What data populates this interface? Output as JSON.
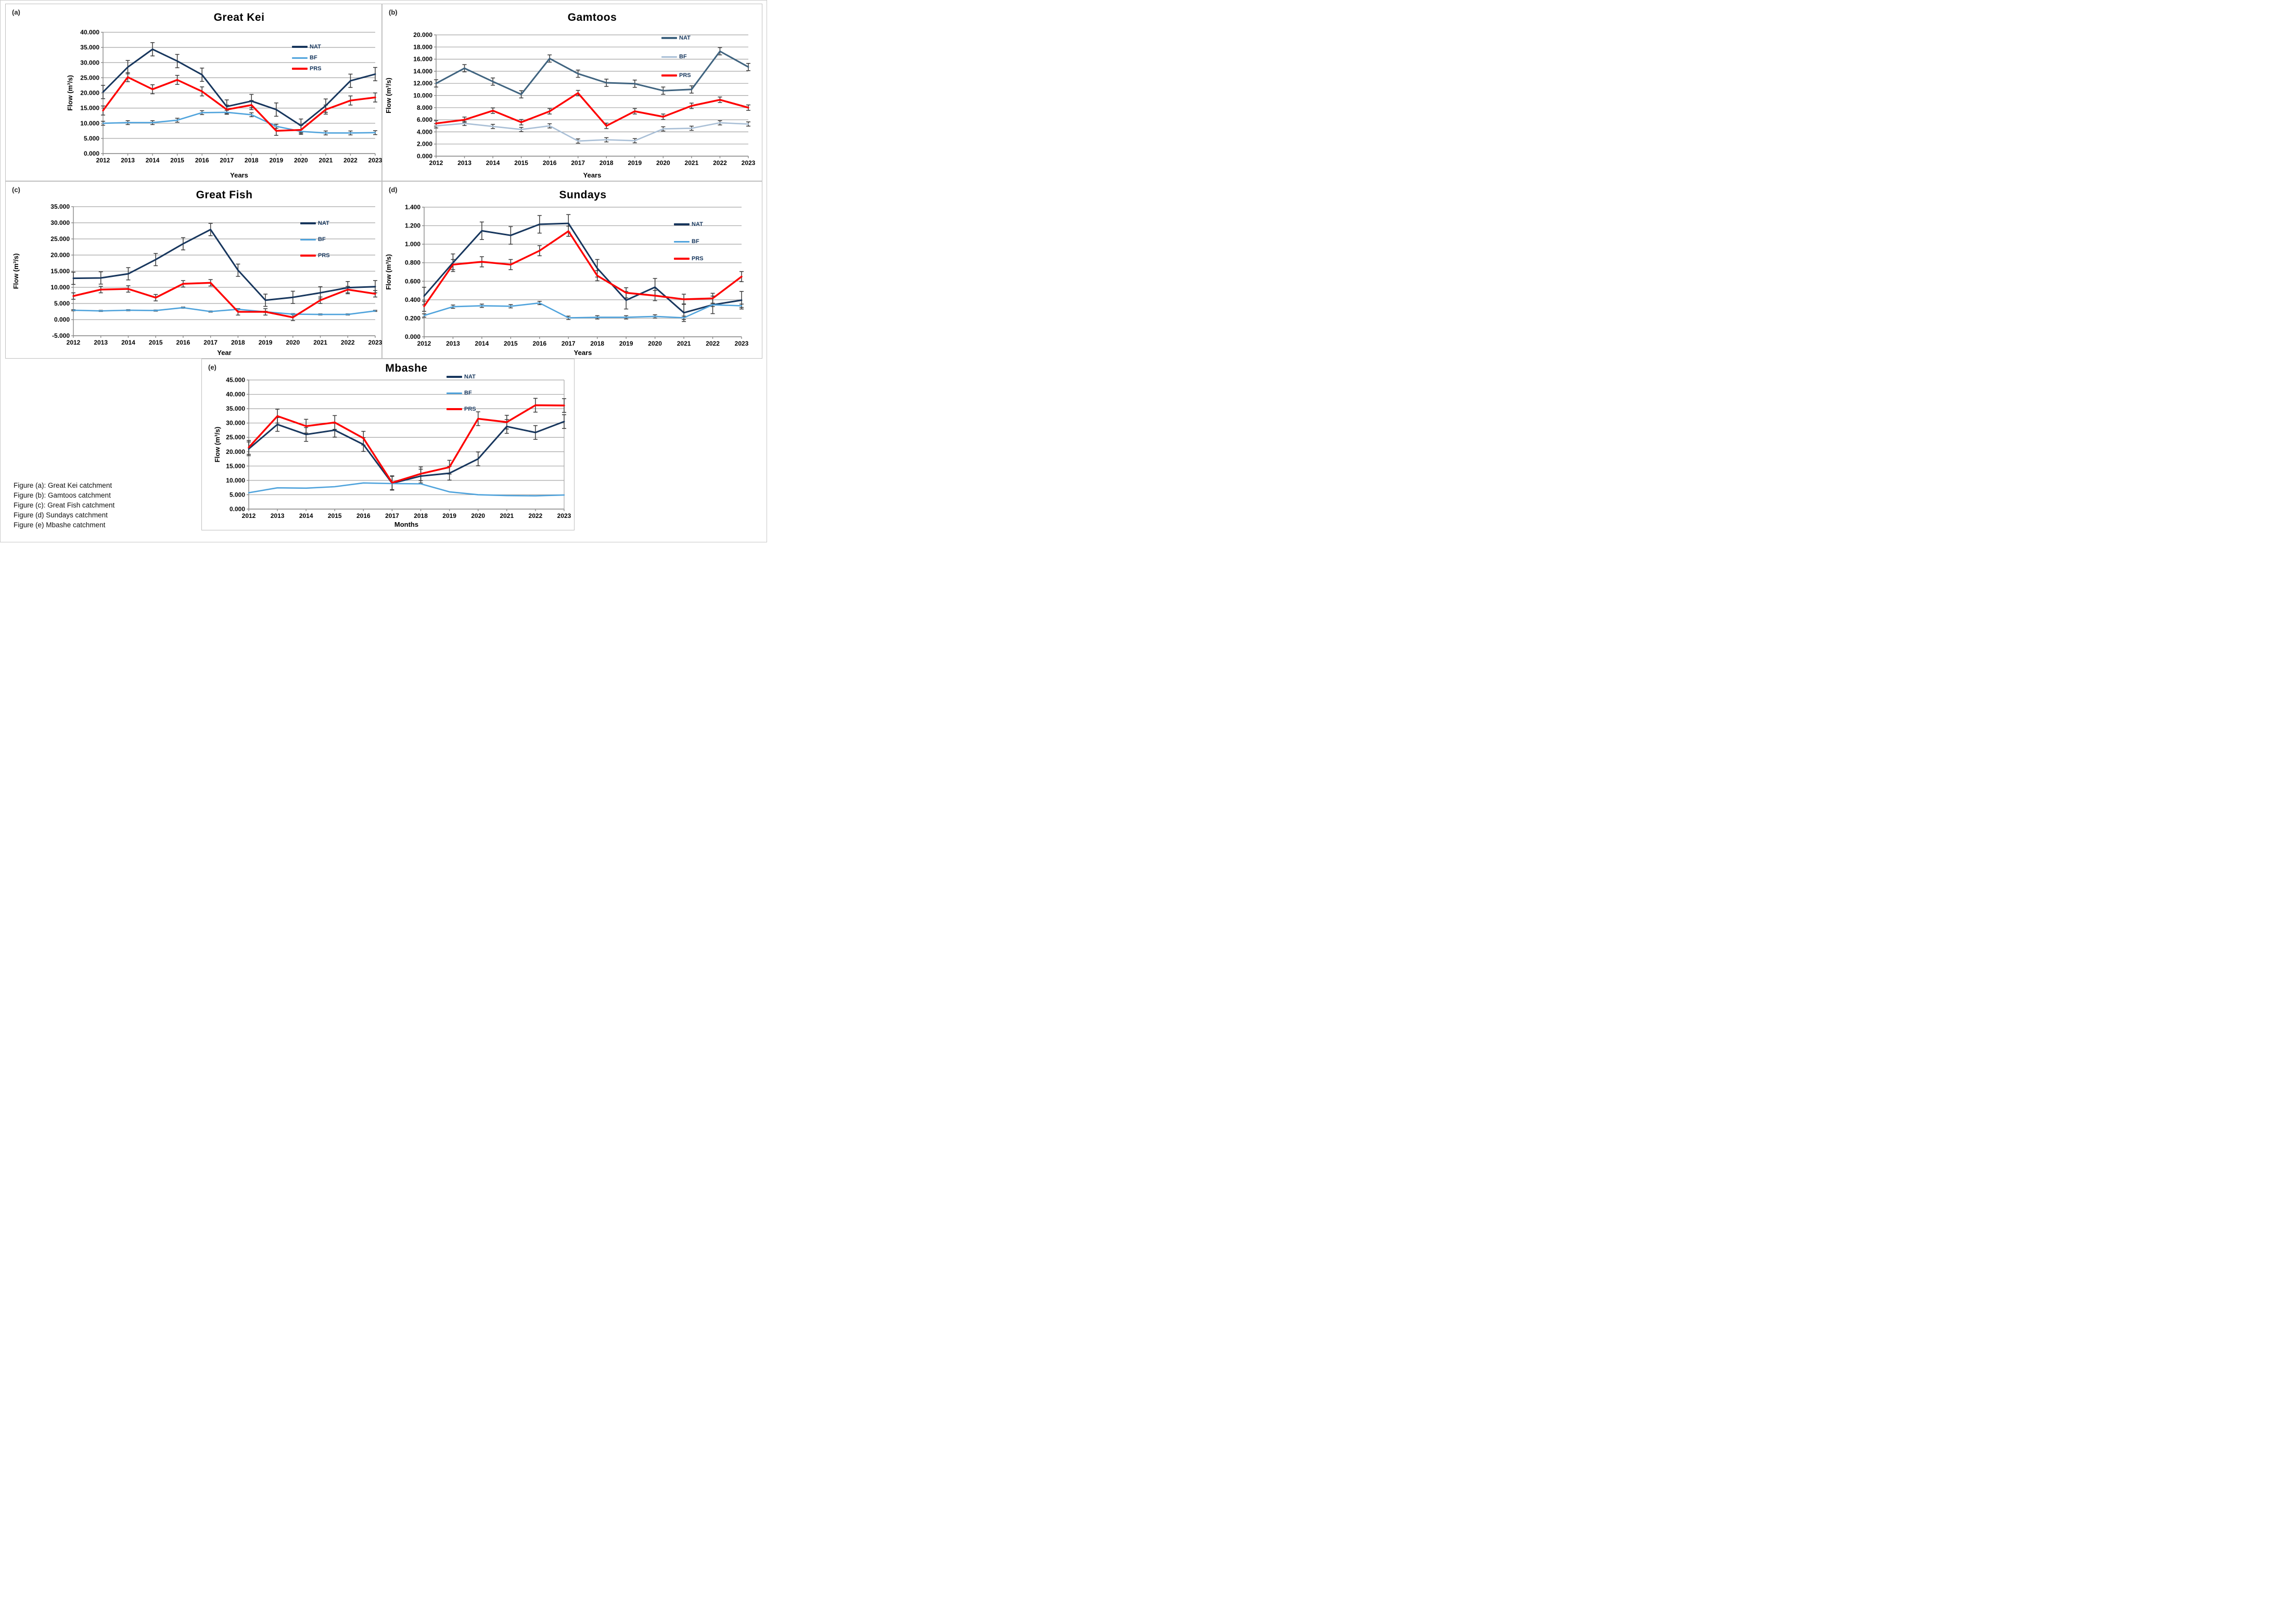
{
  "figure": {
    "captions": [
      "Figure (a): Great Kei catchment",
      "Figure (b): Gamtoos  catchment",
      "Figure (c): Great Fish catchment",
      "Figure (d) Sundays catchment",
      "Figure (e) Mbashe  catchment"
    ]
  },
  "colors": {
    "nat_dark": "#17365d",
    "nat_slate": "#3f637f",
    "bf_bright": "#4fa3dc",
    "bf_pale": "#a9bfd6",
    "prs_red": "#fe0000",
    "grid": "#a6a6a6",
    "axis": "#898989",
    "error_bar": "#3a3a3a",
    "panel_border": "#bfbfbf"
  },
  "chart_data": [
    {
      "letter": "(a)",
      "title": "Great Kei",
      "type": "line",
      "xlabel": "Years",
      "ylabel": "Flow (m³/s)",
      "ylim": [
        0,
        40
      ],
      "ystep": 5,
      "grid": true,
      "error_bars": true,
      "legend_position": "right-inside",
      "categories": [
        2012,
        2013,
        2014,
        2015,
        2016,
        2017,
        2018,
        2019,
        2020,
        2021,
        2022,
        2023
      ],
      "series": [
        {
          "name": "NAT",
          "color_key": "nat_dark",
          "err": 2.2,
          "values": [
            20.3,
            28.5,
            34.4,
            30.5,
            26.0,
            15.5,
            17.3,
            14.5,
            9.2,
            15.8,
            24.0,
            26.2
          ]
        },
        {
          "name": "BF",
          "color_key": "bf_bright",
          "err": 0.65,
          "values": [
            10.0,
            10.2,
            10.2,
            11.0,
            13.5,
            13.6,
            12.8,
            9.0,
            7.3,
            6.8,
            6.8,
            6.9
          ]
        },
        {
          "name": "PRS",
          "color_key": "prs_red",
          "err": 1.5,
          "values": [
            14.2,
            25.2,
            21.2,
            24.3,
            20.5,
            14.5,
            16.0,
            7.5,
            7.8,
            14.5,
            17.5,
            18.5
          ]
        }
      ]
    },
    {
      "letter": "(b)",
      "title": "Gamtoos",
      "type": "line",
      "xlabel": "Years",
      "ylabel": "Flow (m³/s)",
      "ylim": [
        0,
        20
      ],
      "ystep": 2,
      "grid": true,
      "error_bars": true,
      "legend_position": "right-inside",
      "categories": [
        2012,
        2013,
        2014,
        2015,
        2016,
        2017,
        2018,
        2019,
        2020,
        2021,
        2022,
        2023
      ],
      "series": [
        {
          "name": "NAT",
          "color_key": "nat_slate",
          "err": 0.6,
          "values": [
            12.0,
            14.5,
            12.3,
            10.2,
            16.1,
            13.6,
            12.1,
            11.95,
            10.8,
            11.0,
            17.3,
            14.7
          ]
        },
        {
          "name": "BF",
          "color_key": "bf_pale",
          "err": 0.35,
          "values": [
            5.0,
            5.4,
            4.9,
            4.4,
            5.0,
            2.5,
            2.7,
            2.55,
            4.5,
            4.6,
            5.5,
            5.3
          ]
        },
        {
          "name": "PRS",
          "color_key": "prs_red",
          "err": 0.45,
          "values": [
            5.4,
            6.0,
            7.5,
            5.6,
            7.4,
            10.4,
            5.0,
            7.4,
            6.5,
            8.3,
            9.3,
            8.0
          ]
        }
      ]
    },
    {
      "letter": "(c)",
      "title": "Great Fish",
      "type": "line",
      "xlabel": "Year",
      "ylabel": "Flow (m³/s)",
      "ylim": [
        -5,
        35
      ],
      "ystep": 5,
      "grid": true,
      "error_bars": true,
      "legend_position": "right-inside",
      "categories": [
        2012,
        2013,
        2014,
        2015,
        2016,
        2017,
        2018,
        2019,
        2020,
        2021,
        2022,
        2023
      ],
      "series": [
        {
          "name": "NAT",
          "color_key": "nat_dark",
          "err": 1.9,
          "values": [
            12.8,
            12.9,
            14.2,
            18.6,
            23.5,
            27.9,
            15.3,
            6.0,
            6.9,
            8.3,
            9.9,
            10.2
          ]
        },
        {
          "name": "BF",
          "color_key": "bf_bright",
          "err": 0.18,
          "values": [
            2.9,
            2.7,
            2.9,
            2.8,
            3.7,
            2.5,
            3.2,
            2.4,
            1.7,
            1.6,
            1.6,
            2.7
          ]
        },
        {
          "name": "PRS",
          "color_key": "prs_red",
          "err": 1.0,
          "values": [
            7.3,
            9.3,
            9.5,
            6.8,
            11.1,
            11.4,
            2.4,
            2.4,
            0.7,
            6.0,
            9.3,
            8.0
          ]
        }
      ]
    },
    {
      "letter": "(d)",
      "title": "Sundays",
      "type": "line",
      "xlabel": "Years",
      "ylabel": "Flow (m³/s)",
      "ylim": [
        0,
        1.4
      ],
      "ystep": 0.2,
      "grid": true,
      "error_bars": true,
      "legend_position": "right-inside",
      "categories": [
        2012,
        2013,
        2014,
        2015,
        2016,
        2017,
        2018,
        2019,
        2020,
        2021,
        2022,
        2023
      ],
      "series": [
        {
          "name": "NAT",
          "color_key": "nat_dark",
          "err": 0.095,
          "values": [
            0.44,
            0.8,
            1.145,
            1.095,
            1.215,
            1.225,
            0.74,
            0.395,
            0.535,
            0.26,
            0.345,
            0.395
          ]
        },
        {
          "name": "BF",
          "color_key": "bf_bright",
          "err": 0.018,
          "values": [
            0.23,
            0.325,
            0.335,
            0.33,
            0.365,
            0.205,
            0.21,
            0.21,
            0.22,
            0.205,
            0.345,
            0.335
          ]
        },
        {
          "name": "PRS",
          "color_key": "prs_red",
          "err": 0.055,
          "values": [
            0.33,
            0.78,
            0.81,
            0.78,
            0.93,
            1.14,
            0.66,
            0.475,
            0.445,
            0.405,
            0.415,
            0.65
          ]
        }
      ]
    },
    {
      "letter": "(e)",
      "title": "Mbashe",
      "type": "line",
      "xlabel": "Months",
      "ylabel": "Flow (m³/s)",
      "ylim": [
        0,
        45
      ],
      "ystep": 5,
      "grid": true,
      "error_bars": true,
      "legend_position": "top-inside",
      "categories": [
        2012,
        2013,
        2014,
        2015,
        2016,
        2017,
        2018,
        2019,
        2020,
        2021,
        2022,
        2023
      ],
      "series": [
        {
          "name": "NAT",
          "color_key": "nat_dark",
          "err": 2.4,
          "values": [
            21.0,
            29.5,
            26.0,
            27.5,
            22.5,
            9.0,
            11.5,
            12.5,
            17.5,
            28.8,
            26.7,
            30.5
          ]
        },
        {
          "name": "BF",
          "color_key": "bf_bright",
          "err": 0,
          "values": [
            5.7,
            7.4,
            7.3,
            7.8,
            9.1,
            8.9,
            8.8,
            6.0,
            5.0,
            4.7,
            4.6,
            4.9
          ]
        },
        {
          "name": "PRS",
          "color_key": "prs_red",
          "err": 2.4,
          "values": [
            21.5,
            32.4,
            28.9,
            30.2,
            24.7,
            9.2,
            12.3,
            14.6,
            31.5,
            30.3,
            36.2,
            36.1
          ]
        }
      ]
    }
  ]
}
